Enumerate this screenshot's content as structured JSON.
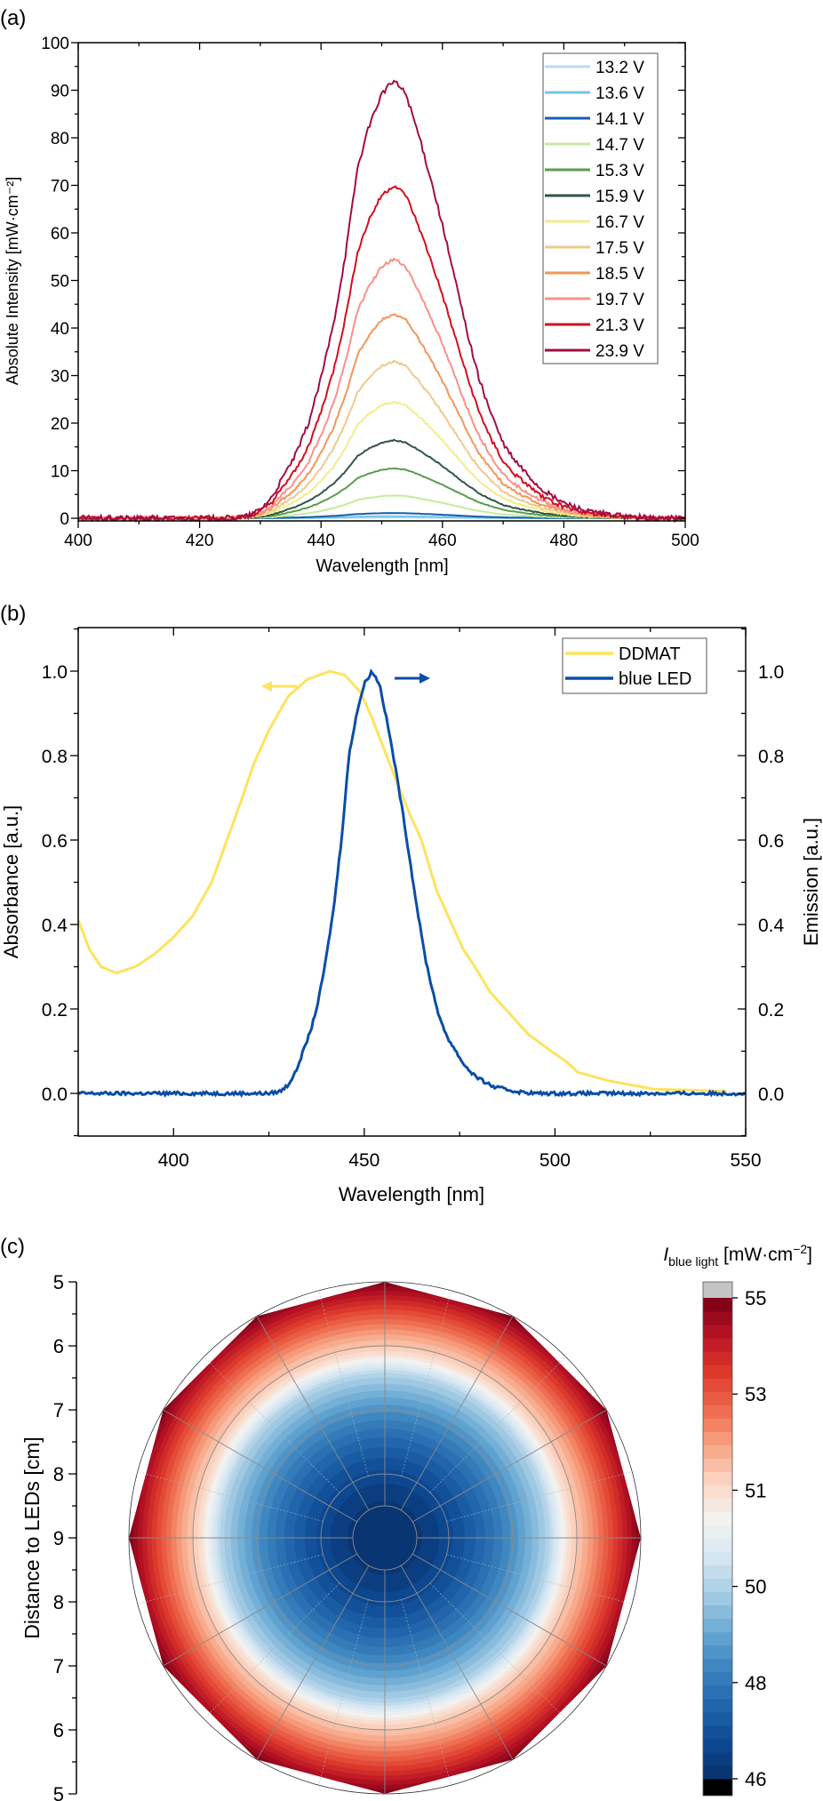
{
  "chart_data": [
    {
      "panel_label": "(a)",
      "type": "line",
      "xlabel": "Wavelength [nm]",
      "ylabel": "Absolute Intensity [mW·cm⁻²]",
      "xlim": [
        400,
        500
      ],
      "ylim": [
        0,
        100
      ],
      "xticks": [
        400,
        420,
        440,
        460,
        480,
        500
      ],
      "yticks": [
        0,
        10,
        20,
        30,
        40,
        50,
        60,
        70,
        80,
        90,
        100
      ],
      "legend_position": "top-right",
      "grid": false,
      "peak_wavelength": 452,
      "normalized_profile": {
        "x": [
          375,
          425,
          428,
          430,
          432,
          434,
          436,
          438,
          440,
          442,
          444,
          446,
          448,
          450,
          452,
          454,
          456,
          458,
          460,
          462,
          464,
          466,
          468,
          470,
          472,
          474,
          476,
          478,
          480,
          482,
          484,
          487,
          490,
          495,
          550
        ],
        "y": [
          0,
          0,
          0.005,
          0.02,
          0.05,
          0.1,
          0.15,
          0.22,
          0.32,
          0.44,
          0.6,
          0.8,
          0.9,
          0.97,
          1.0,
          0.97,
          0.88,
          0.78,
          0.67,
          0.55,
          0.43,
          0.32,
          0.24,
          0.17,
          0.13,
          0.1,
          0.07,
          0.05,
          0.035,
          0.025,
          0.015,
          0.01,
          0.004,
          0,
          0
        ]
      },
      "series": [
        {
          "name": "13.2 V",
          "peak": 0.15,
          "color": "#b7dcf2"
        },
        {
          "name": "13.6 V",
          "peak": 0.4,
          "color": "#78c3e6"
        },
        {
          "name": "14.1 V",
          "peak": 1.1,
          "color": "#1560ab"
        },
        {
          "name": "14.7 V",
          "peak": 4.8,
          "color": "#c6ea9c"
        },
        {
          "name": "15.3 V",
          "peak": 10.5,
          "color": "#5c9b4e"
        },
        {
          "name": "15.9 V",
          "peak": 16.4,
          "color": "#2f5646"
        },
        {
          "name": "16.7 V",
          "peak": 24.5,
          "color": "#f2ec8c"
        },
        {
          "name": "17.5 V",
          "peak": 33,
          "color": "#f0c98a"
        },
        {
          "name": "18.5 V",
          "peak": 43,
          "color": "#f2965a"
        },
        {
          "name": "19.7 V",
          "peak": 54.5,
          "color": "#fa9088"
        },
        {
          "name": "21.3 V",
          "peak": 70,
          "color": "#d40f1e"
        },
        {
          "name": "23.9 V",
          "peak": 92,
          "color": "#a30d45"
        }
      ]
    },
    {
      "panel_label": "(b)",
      "type": "line",
      "xlabel": "Wavelength [nm]",
      "ylabel": "Absorbance [a.u.]",
      "ylabel_right": "Emission [a.u.]",
      "xlim": [
        375,
        550
      ],
      "ylim": [
        -0.1,
        1.1
      ],
      "ylim_right": [
        -0.1,
        1.1
      ],
      "xticks": [
        400,
        450,
        500,
        550
      ],
      "yticks": [
        0.0,
        0.2,
        0.4,
        0.6,
        0.8,
        1.0
      ],
      "legend_position": "top-right",
      "grid": false,
      "series": [
        {
          "name": "DDMAT",
          "axis": "left",
          "color": "#fde35e",
          "x": [
            375,
            378,
            381,
            385,
            390,
            395,
            400,
            405,
            410,
            414,
            418,
            421,
            425,
            430,
            435,
            441,
            445,
            449,
            452,
            455,
            458,
            462,
            465,
            469,
            473,
            476,
            479,
            483,
            487,
            493,
            499,
            503,
            506,
            510,
            514,
            520,
            526,
            535,
            545
          ],
          "y": [
            0.41,
            0.34,
            0.3,
            0.285,
            0.3,
            0.33,
            0.37,
            0.42,
            0.5,
            0.6,
            0.7,
            0.78,
            0.86,
            0.94,
            0.98,
            1.0,
            0.99,
            0.95,
            0.89,
            0.82,
            0.75,
            0.66,
            0.6,
            0.48,
            0.4,
            0.34,
            0.3,
            0.24,
            0.2,
            0.14,
            0.1,
            0.075,
            0.05,
            0.04,
            0.03,
            0.02,
            0.01,
            0.008,
            0.005
          ]
        },
        {
          "name": "blue LED",
          "axis": "right",
          "color": "#0b4ea6",
          "x": [
            375,
            425,
            428,
            430,
            432,
            434,
            436,
            438,
            440,
            442,
            444,
            446,
            448,
            450,
            452,
            454,
            456,
            458,
            460,
            462,
            464,
            466,
            468,
            470,
            472,
            474,
            476,
            478,
            480,
            482,
            484,
            487,
            490,
            495,
            550
          ],
          "y": [
            0,
            0,
            0.005,
            0.02,
            0.05,
            0.1,
            0.15,
            0.22,
            0.32,
            0.44,
            0.6,
            0.8,
            0.9,
            0.97,
            1.0,
            0.97,
            0.88,
            0.78,
            0.67,
            0.55,
            0.43,
            0.32,
            0.24,
            0.17,
            0.13,
            0.1,
            0.07,
            0.05,
            0.035,
            0.025,
            0.015,
            0.01,
            0.004,
            0,
            0
          ]
        }
      ],
      "annotations": [
        {
          "type": "arrow",
          "direction": "left",
          "color": "#fde35e",
          "meaning": "DDMAT on left axis"
        },
        {
          "type": "arrow",
          "direction": "right",
          "color": "#0b4ea6",
          "meaning": "blue LED on right axis"
        }
      ]
    },
    {
      "panel_label": "(c)",
      "type": "heatmap",
      "subtype": "polar contour",
      "ylabel": "Distance to LEDs [cm]",
      "yticks": [
        5,
        6,
        7,
        8,
        9,
        8,
        7,
        6,
        5
      ],
      "center_distance_cm": 9,
      "edge_distance_cm": 5,
      "angular_divisions": 12,
      "colorbar": {
        "title_main": "I",
        "title_sub": "blue light",
        "title_unit": " [mW·cm",
        "title_exp": "−2",
        "title_close": "]",
        "ticks": [
          55,
          53,
          51,
          50,
          48,
          46
        ],
        "range": [
          46,
          55
        ],
        "colormap": [
          "#08306b",
          "#0d4a94",
          "#2166ac",
          "#3b84bf",
          "#6aaad3",
          "#a6cde4",
          "#d6e6f3",
          "#f3f3f1",
          "#fbd6c4",
          "#f7a584",
          "#ee6a4e",
          "#dd3a2c",
          "#b81324",
          "#7a0017"
        ],
        "over_color": "#c4c4c4",
        "under_color": "#000000"
      },
      "center_value": 46,
      "edge_value": 55
    }
  ]
}
